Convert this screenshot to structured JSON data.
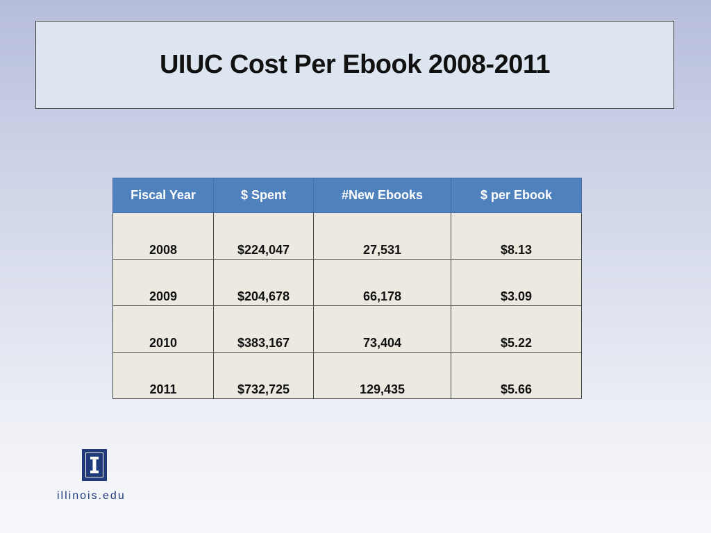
{
  "slide": {
    "title": "UIUC Cost Per Ebook 2008-2011"
  },
  "table": {
    "headers": [
      "Fiscal Year",
      "$ Spent",
      "#New Ebooks",
      "$ per Ebook"
    ],
    "rows": [
      [
        "2008",
        "$224,047",
        "27,531",
        "$8.13"
      ],
      [
        "2009",
        "$204,678",
        "66,178",
        "$3.09"
      ],
      [
        "2010",
        "$383,167",
        "73,404",
        "$5.22"
      ],
      [
        "2011",
        "$732,725",
        "129,435",
        "$5.66"
      ]
    ]
  },
  "footer": {
    "brand": "illinois.edu",
    "logo_icon": "illinois-block-i-icon"
  },
  "colors": {
    "header_bg": "#4f81bd",
    "cell_bg": "#eceae0",
    "title_bg": "#dde6f0",
    "brand": "#1f3a7a"
  }
}
